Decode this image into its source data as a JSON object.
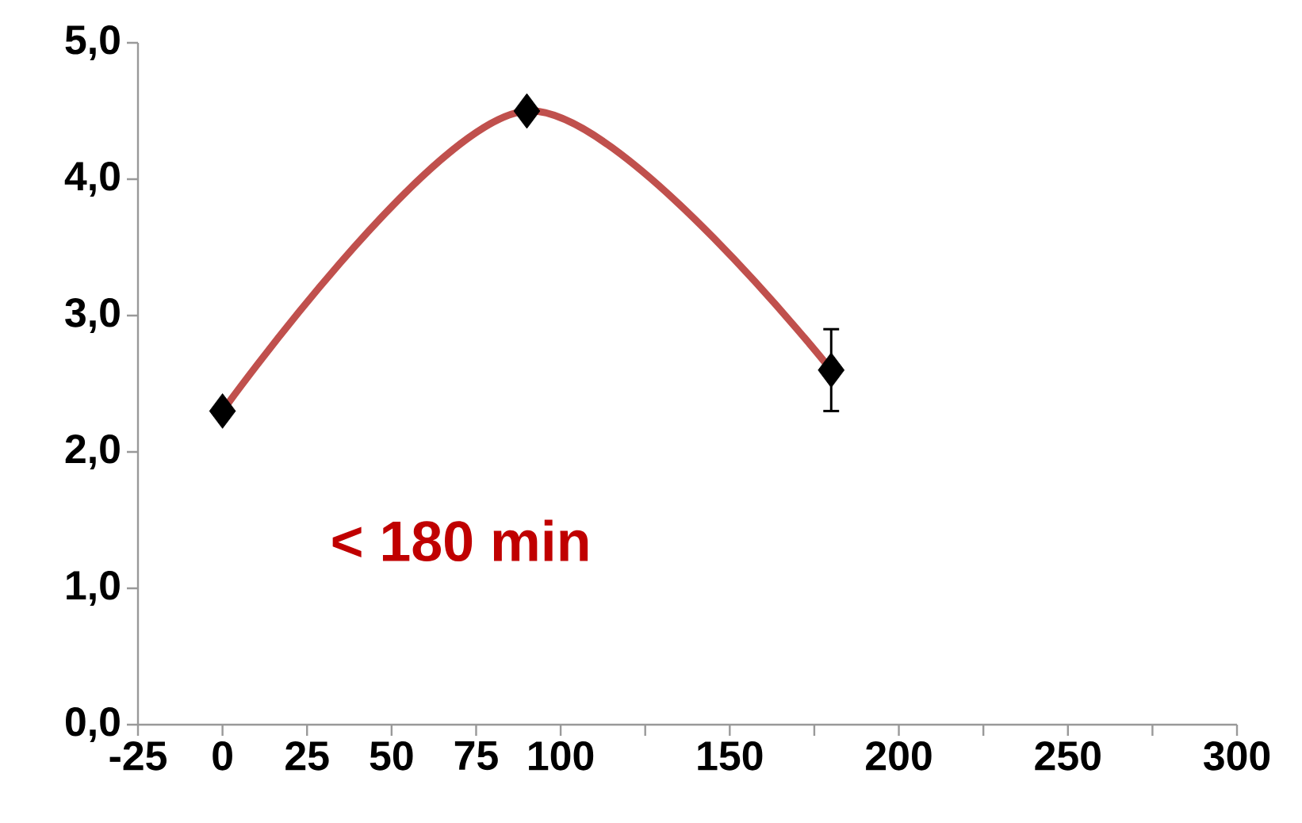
{
  "chart_data": {
    "type": "scatter",
    "x": [
      0,
      90,
      180
    ],
    "series": [
      {
        "color": "#000000",
        "marker": "diamond",
        "values": [
          2.3,
          4.5,
          2.6
        ],
        "errors": [
          null,
          null,
          0.3
        ]
      },
      {
        "type": "line",
        "color": "#c0504d",
        "marker": "none",
        "line_style": "solid",
        "values": [
          2.3,
          4.5,
          2.6
        ]
      }
    ],
    "xlim": [
      -25,
      300
    ],
    "xticks": [
      -25,
      0,
      25,
      50,
      75,
      100,
      {
        "value": 125,
        "label": null
      },
      150,
      {
        "value": 175,
        "label": null
      },
      200,
      {
        "value": 225,
        "label": null
      },
      250,
      {
        "value": 275,
        "label": null
      },
      300
    ],
    "ylim": [
      0,
      5
    ],
    "yticks": [
      {
        "value": 0,
        "label": "0,0"
      },
      {
        "value": 1,
        "label": "1,0"
      },
      {
        "value": 2,
        "label": "2,0"
      },
      {
        "value": 3,
        "label": "3,0"
      },
      {
        "value": 4,
        "label": "4,0"
      },
      {
        "value": 5,
        "label": "5,0"
      }
    ],
    "annotations": [
      "< 180 min"
    ]
  }
}
